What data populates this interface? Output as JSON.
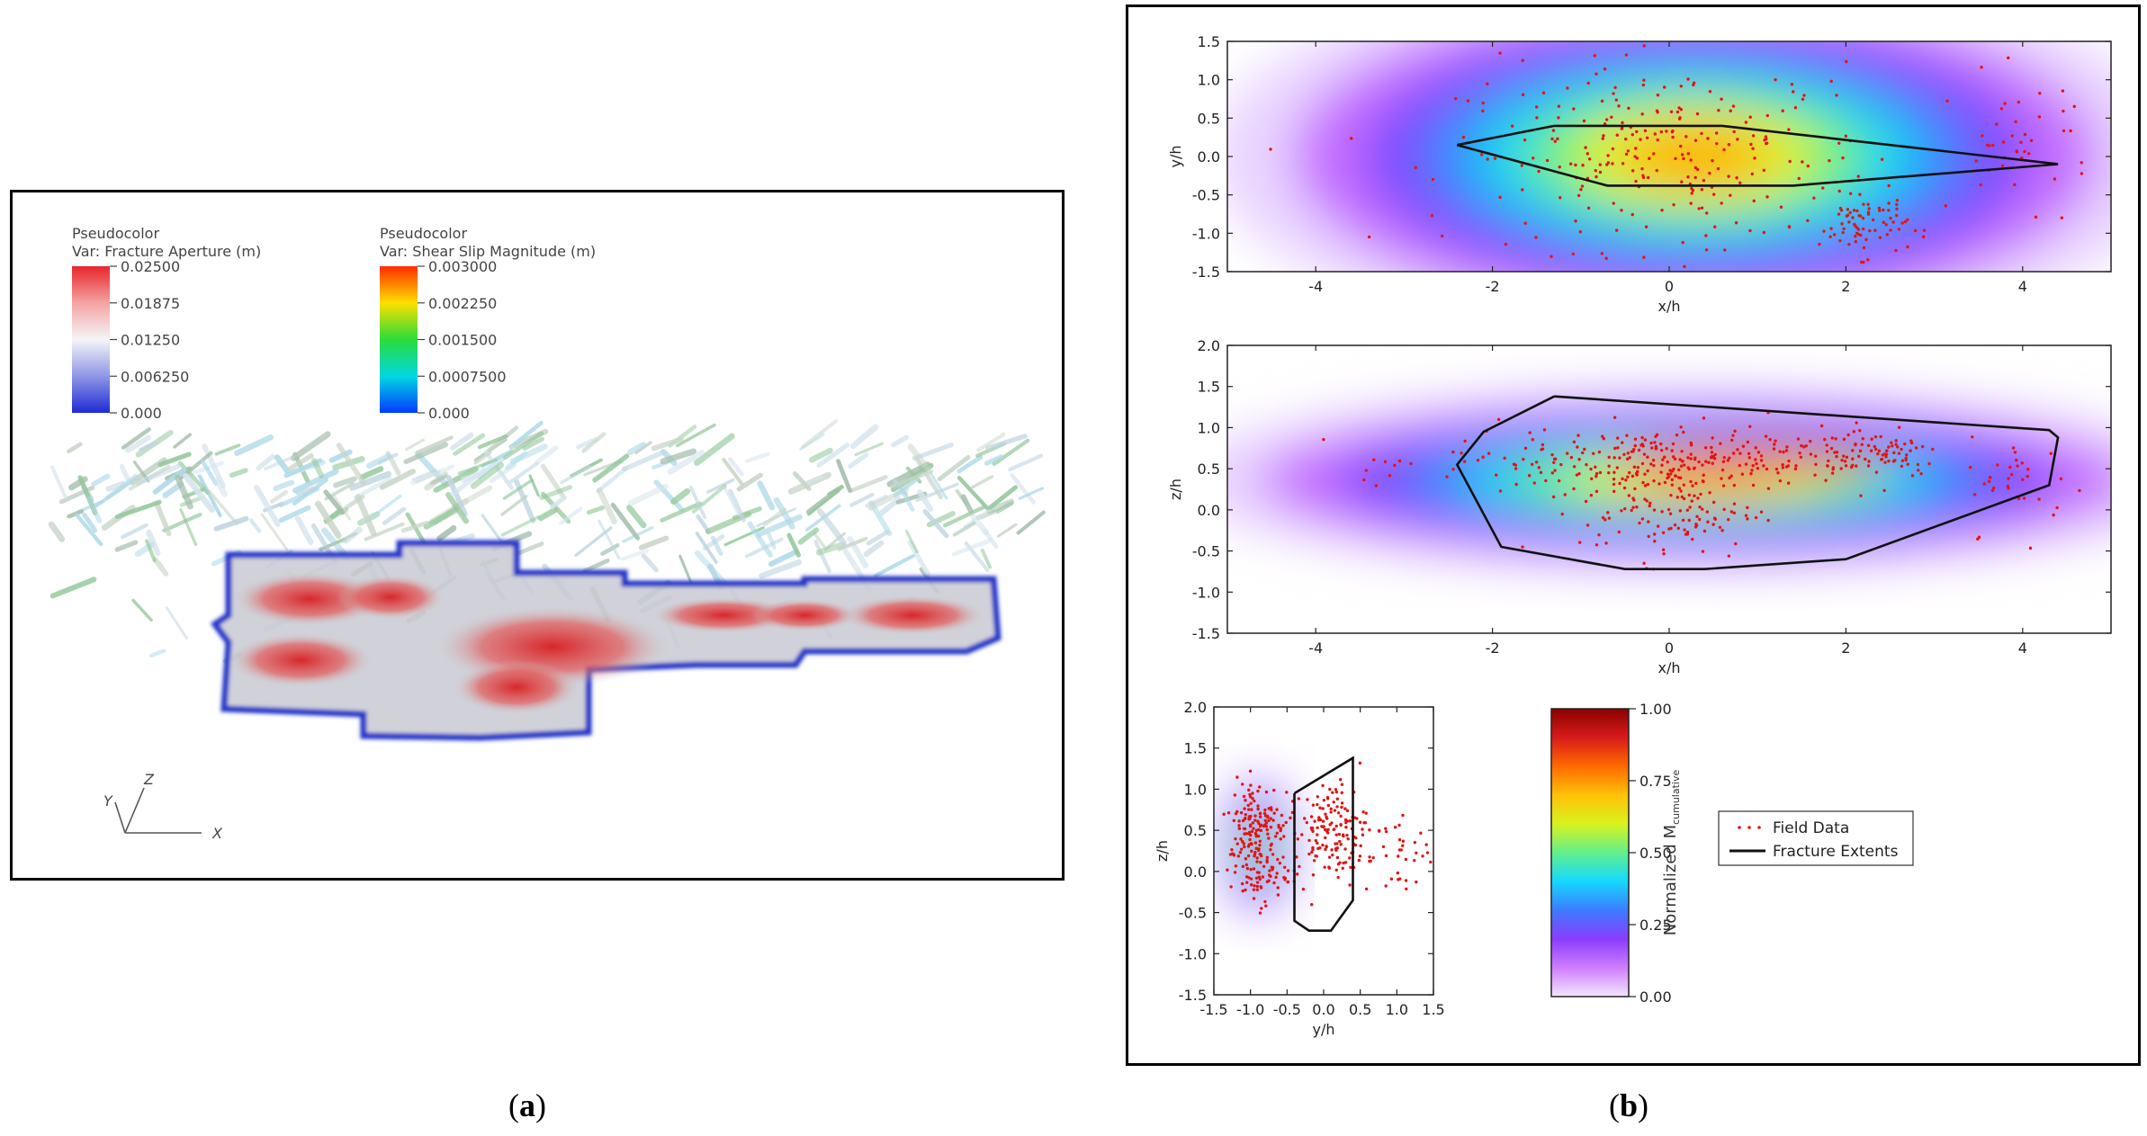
{
  "captions": {
    "a": "a",
    "b": "b"
  },
  "panel_a": {
    "legend_aperture": {
      "title": "Pseudocolor",
      "var": "Var: Fracture Aperture (m)",
      "ticks": [
        "0.02500",
        "0.01875",
        "0.01250",
        "0.006250",
        "0.000"
      ],
      "colors": [
        "#e8262b",
        "#f4a3a3",
        "#f5f5f7",
        "#8f96e6",
        "#1e2ad6"
      ]
    },
    "legend_slip": {
      "title": "Pseudocolor",
      "var": "Var: Shear Slip Magnitude (m)",
      "ticks": [
        "0.003000",
        "0.002250",
        "0.001500",
        "0.0007500",
        "0.000"
      ],
      "colors": [
        "#ff2a00",
        "#ffe000",
        "#2adc3a",
        "#00d8e0",
        "#003cff"
      ]
    },
    "axes_triad": {
      "y": "Y",
      "z": "Z",
      "x": "X"
    }
  },
  "chart_data": [
    {
      "type": "heatmap",
      "xlabel": "x/h",
      "ylabel": "y/h",
      "xlim": [
        -5,
        5
      ],
      "ylim": [
        -1.5,
        1.5
      ],
      "xticks": [
        "-4",
        "-2",
        "0",
        "2",
        "4"
      ],
      "yticks": [
        "1.5",
        "1.0",
        "0.5",
        "0.0",
        "-0.5",
        "-1.0",
        "-1.5"
      ],
      "fracture_extent": [
        [
          -2.4,
          0.15
        ],
        [
          -1.3,
          0.4
        ],
        [
          0.6,
          0.4
        ],
        [
          4.4,
          -0.1
        ],
        [
          1.4,
          -0.38
        ],
        [
          -0.7,
          -0.38
        ],
        [
          -2.4,
          0.15
        ]
      ],
      "clusters": [
        {
          "cx": 0.0,
          "cy": 0.0,
          "sx": 1.2,
          "sy": 0.6,
          "n": 260
        },
        {
          "cx": 2.2,
          "cy": -0.9,
          "sx": 0.25,
          "sy": 0.2,
          "n": 70
        },
        {
          "cx": 4.0,
          "cy": 0.2,
          "sx": 0.4,
          "sy": 0.4,
          "n": 40
        }
      ]
    },
    {
      "type": "heatmap",
      "xlabel": "x/h",
      "ylabel": "z/h",
      "xlim": [
        -5,
        5
      ],
      "ylim": [
        -1.5,
        2.0
      ],
      "xticks": [
        "-4",
        "-2",
        "0",
        "2",
        "4"
      ],
      "yticks": [
        "2.0",
        "1.5",
        "1.0",
        "0.5",
        "0.0",
        "-0.5",
        "-1.0",
        "-1.5"
      ],
      "fracture_extent": [
        [
          -1.3,
          1.38
        ],
        [
          4.3,
          0.97
        ],
        [
          4.4,
          0.88
        ],
        [
          4.3,
          0.3
        ],
        [
          2.0,
          -0.6
        ],
        [
          0.4,
          -0.72
        ],
        [
          -0.5,
          -0.72
        ],
        [
          -1.9,
          -0.45
        ],
        [
          -2.4,
          0.55
        ],
        [
          -2.1,
          0.95
        ],
        [
          -1.3,
          1.38
        ]
      ],
      "clusters": [
        {
          "cx": 0.0,
          "cy": 0.6,
          "sx": 1.3,
          "sy": 0.2,
          "n": 300
        },
        {
          "cx": 0.0,
          "cy": 0.0,
          "sx": 0.5,
          "sy": 0.3,
          "n": 120
        },
        {
          "cx": 2.3,
          "cy": 0.7,
          "sx": 0.4,
          "sy": 0.15,
          "n": 60
        },
        {
          "cx": 4.0,
          "cy": 0.3,
          "sx": 0.3,
          "sy": 0.3,
          "n": 30
        }
      ]
    },
    {
      "type": "heatmap",
      "xlabel": "y/h",
      "ylabel": "z/h",
      "xlim": [
        -1.5,
        1.5
      ],
      "ylim": [
        -1.5,
        2.0
      ],
      "xticks": [
        "-1.5",
        "-1.0",
        "-0.5",
        "0.0",
        "0.5",
        "1.0",
        "1.5"
      ],
      "yticks": [
        "2.0",
        "1.5",
        "1.0",
        "0.5",
        "0.0",
        "-0.5",
        "-1.0",
        "-1.5"
      ],
      "fracture_extent": [
        [
          -0.4,
          0.95
        ],
        [
          0.4,
          1.38
        ],
        [
          0.4,
          -0.35
        ],
        [
          0.1,
          -0.72
        ],
        [
          -0.2,
          -0.72
        ],
        [
          -0.4,
          -0.6
        ],
        [
          -0.4,
          0.95
        ]
      ],
      "clusters": [
        {
          "cx": -0.9,
          "cy": 0.6,
          "sx": 0.2,
          "sy": 0.25,
          "n": 130
        },
        {
          "cx": 0.1,
          "cy": 0.5,
          "sx": 0.25,
          "sy": 0.3,
          "n": 150
        },
        {
          "cx": -0.9,
          "cy": 0.0,
          "sx": 0.2,
          "sy": 0.2,
          "n": 80
        },
        {
          "cx": 1.0,
          "cy": 0.2,
          "sx": 0.3,
          "sy": 0.3,
          "n": 40
        }
      ]
    }
  ],
  "colorbar": {
    "label_main": "Normalized M",
    "label_sub": "cumulative",
    "ticks": [
      "1.00",
      "0.75",
      "0.50",
      "0.25",
      "0.00"
    ],
    "colors": [
      "#f3e6ff",
      "#cf7dff",
      "#8a3cff",
      "#3d7bff",
      "#14d8ff",
      "#62f08c",
      "#d9f21e",
      "#ffc107",
      "#ff6a00",
      "#d81b1b",
      "#8b0000"
    ]
  },
  "legend": {
    "field_data": "Field Data",
    "fracture_extents": "Fracture Extents"
  }
}
